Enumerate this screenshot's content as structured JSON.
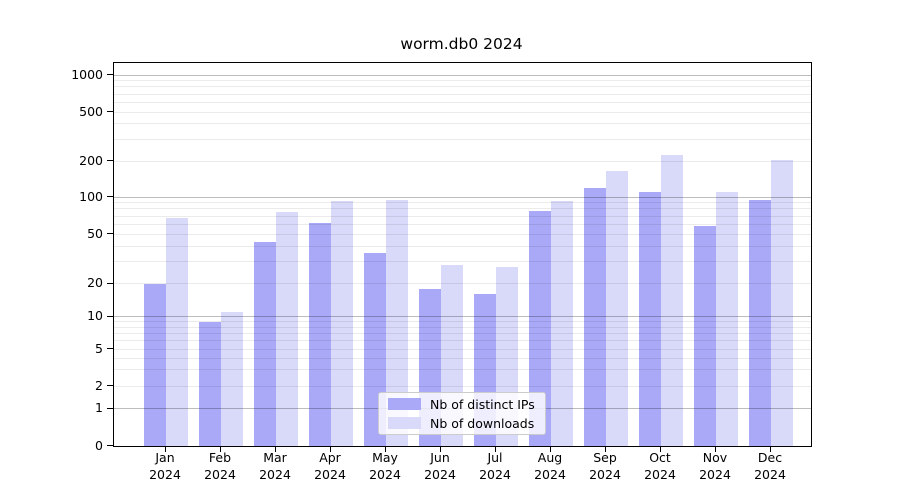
{
  "chart_data": {
    "type": "bar",
    "title": "worm.db0 2024",
    "categories": [
      "Jan",
      "Feb",
      "Mar",
      "Apr",
      "May",
      "Jun",
      "Jul",
      "Aug",
      "Sep",
      "Oct",
      "Nov",
      "Dec"
    ],
    "category_year": "2024",
    "series": [
      {
        "name": "Nb of distinct IPs",
        "color": "#a9a9f8",
        "values": [
          20,
          9,
          43,
          62,
          35,
          18,
          16,
          77,
          120,
          110,
          58,
          94
        ]
      },
      {
        "name": "Nb of downloads",
        "color": "#d9d9f9",
        "values": [
          68,
          11,
          75,
          92,
          94,
          28,
          27,
          92,
          165,
          225,
          110,
          205
        ]
      }
    ],
    "xlabel": "",
    "ylabel": "",
    "yscale": "symlog",
    "y_ticks": [
      0,
      1,
      2,
      5,
      10,
      20,
      50,
      100,
      200,
      500,
      1000
    ],
    "ylim": [
      0,
      1250
    ],
    "grid": true,
    "legend_position": "lower center"
  }
}
